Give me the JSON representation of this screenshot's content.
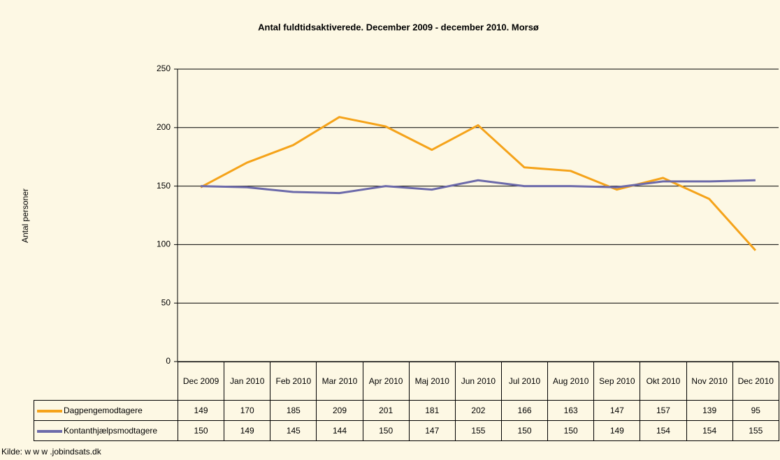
{
  "chart_data": {
    "type": "line",
    "title": "Antal fuldtidsaktiverede. December 2009 - december 2010. Morsø",
    "y_label": "Antal personer",
    "source": "Kilde: w w w .jobindsats.dk",
    "categories": [
      "Dec 2009",
      "Jan 2010",
      "Feb 2010",
      "Mar 2010",
      "Apr 2010",
      "Maj 2010",
      "Jun 2010",
      "Jul 2010",
      "Aug 2010",
      "Sep 2010",
      "Okt 2010",
      "Nov 2010",
      "Dec 2010"
    ],
    "series": [
      {
        "name": "Dagpengemodtagere",
        "color": "#f5a31a",
        "values": [
          149,
          170,
          185,
          209,
          201,
          181,
          202,
          166,
          163,
          147,
          157,
          139,
          95
        ]
      },
      {
        "name": "Kontanthjælpsmodtagere",
        "color": "#6c6aaa",
        "values": [
          150,
          149,
          145,
          144,
          150,
          147,
          155,
          150,
          150,
          149,
          154,
          154,
          155
        ]
      }
    ],
    "ylim": [
      0,
      250
    ],
    "yticks": [
      0,
      50,
      100,
      150,
      200,
      250
    ],
    "grid": true
  }
}
